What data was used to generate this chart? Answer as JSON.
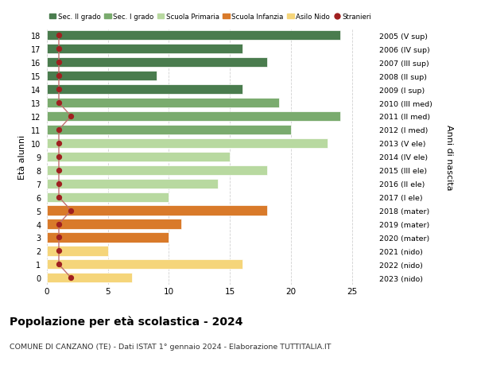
{
  "ages": [
    18,
    17,
    16,
    15,
    14,
    13,
    12,
    11,
    10,
    9,
    8,
    7,
    6,
    5,
    4,
    3,
    2,
    1,
    0
  ],
  "values": [
    24,
    16,
    18,
    9,
    16,
    19,
    24,
    20,
    23,
    15,
    18,
    14,
    10,
    18,
    11,
    10,
    5,
    16,
    7
  ],
  "labels_right": [
    "2005 (V sup)",
    "2006 (IV sup)",
    "2007 (III sup)",
    "2008 (II sup)",
    "2009 (I sup)",
    "2010 (III med)",
    "2011 (II med)",
    "2012 (I med)",
    "2013 (V ele)",
    "2014 (IV ele)",
    "2015 (III ele)",
    "2016 (II ele)",
    "2017 (I ele)",
    "2018 (mater)",
    "2019 (mater)",
    "2020 (mater)",
    "2021 (nido)",
    "2022 (nido)",
    "2023 (nido)"
  ],
  "bar_colors": [
    "#4a7c4e",
    "#4a7c4e",
    "#4a7c4e",
    "#4a7c4e",
    "#4a7c4e",
    "#7aab6e",
    "#7aab6e",
    "#7aab6e",
    "#b8d9a0",
    "#b8d9a0",
    "#b8d9a0",
    "#b8d9a0",
    "#b8d9a0",
    "#d97a2a",
    "#d97a2a",
    "#d97a2a",
    "#f5d57a",
    "#f5d57a",
    "#f5d57a"
  ],
  "stranieri_values": [
    1,
    1,
    1,
    1,
    1,
    1,
    2,
    1,
    1,
    1,
    1,
    1,
    1,
    2,
    1,
    1,
    1,
    1,
    2
  ],
  "legend_labels": [
    "Sec. II grado",
    "Sec. I grado",
    "Scuola Primaria",
    "Scuola Infanzia",
    "Asilo Nido",
    "Stranieri"
  ],
  "legend_colors": [
    "#4a7c4e",
    "#7aab6e",
    "#b8d9a0",
    "#d97a2a",
    "#f5d57a",
    "#a02020"
  ],
  "ylabel_left": "Età alunni",
  "ylabel_right": "Anni di nascita",
  "title": "Popolazione per età scolastica - 2024",
  "subtitle": "COMUNE DI CANZANO (TE) - Dati ISTAT 1° gennaio 2024 - Elaborazione TUTTITALIA.IT",
  "xlim": [
    0,
    27
  ],
  "background_color": "#ffffff",
  "grid_color": "#cccccc",
  "stranieri_color": "#a02020",
  "stranieri_line_color": "#c07070"
}
